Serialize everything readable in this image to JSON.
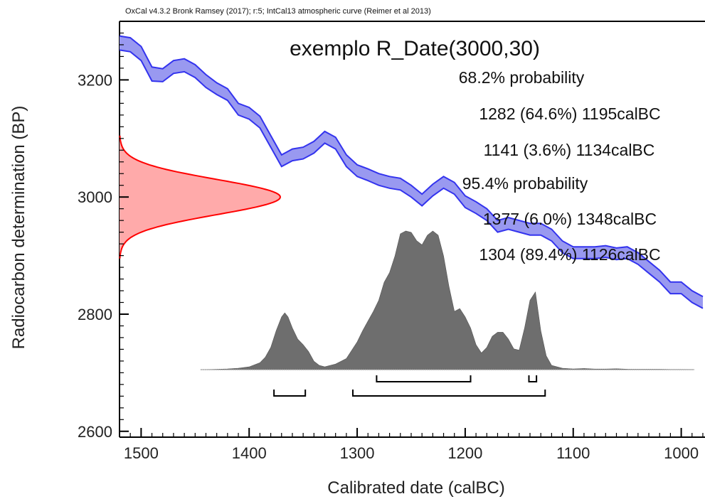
{
  "header": "OxCal v4.3.2 Bronk Ramsey (2017); r:5; IntCal13 atmospheric curve (Reimer et al 2013)",
  "chart_data": {
    "type": "area",
    "title": "exemplo R_Date(3000,30)",
    "xlabel": "Calibrated date (calBC)",
    "ylabel": "Radiocarbon determination (BP)",
    "xlim": [
      1520,
      978
    ],
    "ylim": [
      2590,
      3300
    ],
    "x_ticks": [
      1500,
      1400,
      1300,
      1200,
      1100,
      1000
    ],
    "y_ticks": [
      2600,
      2800,
      3000,
      3200
    ],
    "annotations": [
      "68.2% probability",
      "1282 (64.6%) 1195calBC",
      "1141 (3.6%) 1134calBC",
      "95.4% probability",
      "1377 (6.0%) 1348calBC",
      "1304 (89.4%) 1126calBC"
    ],
    "calibration_curve": {
      "name": "IntCal13 atmospheric curve",
      "x": [
        1520,
        1510,
        1500,
        1490,
        1480,
        1470,
        1460,
        1450,
        1440,
        1430,
        1420,
        1410,
        1400,
        1390,
        1380,
        1370,
        1360,
        1350,
        1340,
        1330,
        1320,
        1310,
        1300,
        1290,
        1280,
        1270,
        1260,
        1250,
        1240,
        1230,
        1220,
        1210,
        1200,
        1190,
        1180,
        1170,
        1160,
        1150,
        1140,
        1130,
        1120,
        1110,
        1100,
        1090,
        1080,
        1070,
        1060,
        1050,
        1040,
        1030,
        1020,
        1010,
        1000,
        990,
        980
      ],
      "y": [
        3263,
        3260,
        3245,
        3210,
        3208,
        3222,
        3225,
        3215,
        3198,
        3185,
        3175,
        3150,
        3143,
        3128,
        3095,
        3062,
        3072,
        3075,
        3085,
        3102,
        3092,
        3062,
        3045,
        3038,
        3030,
        3025,
        3022,
        3010,
        2995,
        3012,
        3025,
        3015,
        2992,
        2982,
        2970,
        2950,
        2955,
        2950,
        2945,
        2945,
        2935,
        2915,
        2905,
        2905,
        2905,
        2907,
        2903,
        2905,
        2895,
        2880,
        2865,
        2845,
        2845,
        2830,
        2820
      ],
      "halfwidth": [
        12,
        12,
        12,
        12,
        11,
        11,
        11,
        11,
        11,
        10,
        10,
        10,
        10,
        10,
        10,
        10,
        10,
        10,
        10,
        10,
        10,
        10,
        10,
        10,
        10,
        10,
        10,
        10,
        10,
        10,
        10,
        10,
        10,
        10,
        10,
        10,
        10,
        10,
        10,
        10,
        10,
        10,
        10,
        10,
        10,
        10,
        10,
        10,
        10,
        10,
        10,
        10,
        10,
        10,
        10
      ],
      "color": "#3333ee",
      "fill": "#9999f0"
    },
    "radiocarbon_date": {
      "mean": 3000,
      "sigma": 30,
      "color": "#ff0000",
      "fill": "#ffaaaa"
    },
    "posterior": {
      "x": [
        1445,
        1440,
        1430,
        1420,
        1410,
        1400,
        1390,
        1385,
        1380,
        1375,
        1370,
        1367,
        1364,
        1360,
        1355,
        1350,
        1345,
        1340,
        1335,
        1330,
        1320,
        1310,
        1300,
        1295,
        1290,
        1285,
        1280,
        1275,
        1270,
        1265,
        1260,
        1255,
        1250,
        1245,
        1240,
        1235,
        1230,
        1225,
        1220,
        1215,
        1210,
        1205,
        1200,
        1195,
        1190,
        1185,
        1180,
        1175,
        1170,
        1165,
        1160,
        1155,
        1150,
        1145,
        1140,
        1135,
        1130,
        1125,
        1120,
        1110,
        1100,
        1090,
        1080,
        1070,
        1060,
        1050,
        1040,
        1030,
        1020,
        1010,
        1000,
        988
      ],
      "density": [
        0,
        0,
        0.002,
        0.005,
        0.01,
        0.02,
        0.05,
        0.09,
        0.16,
        0.28,
        0.38,
        0.41,
        0.38,
        0.3,
        0.22,
        0.18,
        0.13,
        0.06,
        0.03,
        0.02,
        0.04,
        0.08,
        0.2,
        0.28,
        0.35,
        0.42,
        0.5,
        0.63,
        0.7,
        0.82,
        0.98,
        1.0,
        0.99,
        0.93,
        0.9,
        0.97,
        1.0,
        0.97,
        0.82,
        0.6,
        0.42,
        0.44,
        0.38,
        0.3,
        0.18,
        0.12,
        0.16,
        0.24,
        0.27,
        0.27,
        0.22,
        0.15,
        0.14,
        0.3,
        0.5,
        0.56,
        0.28,
        0.1,
        0.03,
        0.01,
        0.005,
        0.008,
        0.004,
        0.004,
        0.006,
        0.003,
        0.002,
        0.002,
        0.002,
        0.001,
        0.001,
        0
      ],
      "color": "#6e6e6e"
    },
    "ranges_68": [
      [
        1282,
        1195
      ],
      [
        1141,
        1134
      ]
    ],
    "ranges_95": [
      [
        1377,
        1348
      ],
      [
        1304,
        1126
      ]
    ]
  }
}
